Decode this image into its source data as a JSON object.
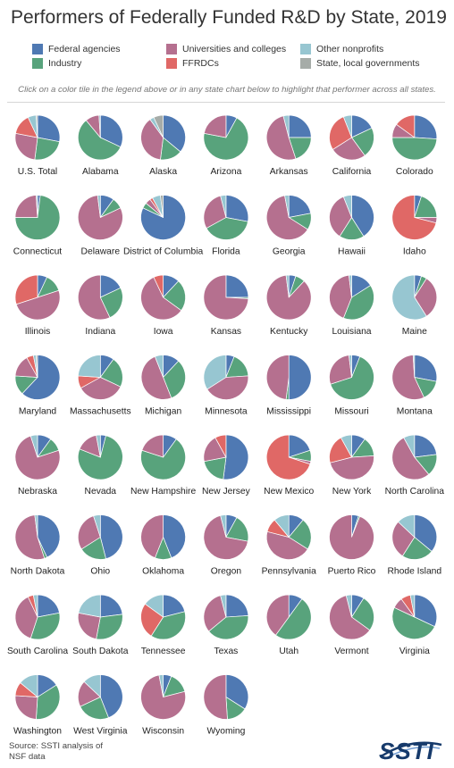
{
  "title": "Performers of Federally Funded R&D by State, 2019",
  "legend": [
    {
      "key": "federal",
      "label": "Federal agencies",
      "color": "#4f79b3"
    },
    {
      "key": "industry",
      "label": "Industry",
      "color": "#58a37c"
    },
    {
      "key": "universities",
      "label": "Universities and colleges",
      "color": "#b5708f"
    },
    {
      "key": "ffrdc",
      "label": "FFRDCs",
      "color": "#e06866"
    },
    {
      "key": "nonprofit",
      "label": "Other nonprofits",
      "color": "#97c6d1"
    },
    {
      "key": "state_local",
      "label": "State, local governments",
      "color": "#a6aca8"
    }
  ],
  "instructions": "Click on a color tile in the legend above or in any state chart below to highlight that performer across all states.",
  "source": "Source: SSTI analysis of NSF data",
  "logo": "SSTI",
  "icons": {
    "logo": "ssti-logo-icon"
  },
  "chart_data": {
    "type": "pie",
    "series_order": [
      "federal",
      "industry",
      "universities",
      "ffrdc",
      "nonprofit",
      "state_local"
    ],
    "charts": [
      {
        "name": "U.S. Total",
        "values": [
          28,
          24,
          26,
          15,
          6,
          1
        ]
      },
      {
        "name": "Alabama",
        "values": [
          32,
          57,
          10,
          0,
          1,
          0
        ]
      },
      {
        "name": "Alaska",
        "values": [
          36,
          16,
          38,
          0,
          3,
          7
        ]
      },
      {
        "name": "Arizona",
        "values": [
          8,
          70,
          22,
          0,
          0,
          0
        ]
      },
      {
        "name": "Arkansas",
        "values": [
          25,
          20,
          51,
          0,
          4,
          0
        ]
      },
      {
        "name": "California",
        "values": [
          18,
          22,
          26,
          28,
          6,
          0
        ]
      },
      {
        "name": "Colorado",
        "values": [
          26,
          49,
          10,
          15,
          0,
          0
        ]
      },
      {
        "name": "Connecticut",
        "values": [
          2,
          73,
          24,
          0,
          1,
          0
        ]
      },
      {
        "name": "Delaware",
        "values": [
          10,
          8,
          80,
          0,
          2,
          0
        ]
      },
      {
        "name": "District of Columbia",
        "values": [
          82,
          4,
          4,
          2,
          6,
          2
        ]
      },
      {
        "name": "Florida",
        "values": [
          28,
          39,
          29,
          0,
          4,
          0
        ]
      },
      {
        "name": "Georgia",
        "values": [
          22,
          12,
          63,
          0,
          3,
          0
        ]
      },
      {
        "name": "Hawaii",
        "values": [
          41,
          18,
          35,
          0,
          6,
          0
        ]
      },
      {
        "name": "Idaho",
        "values": [
          5,
          20,
          4,
          71,
          0,
          0
        ]
      },
      {
        "name": "Illinois",
        "values": [
          7,
          13,
          50,
          30,
          0,
          0
        ]
      },
      {
        "name": "Indiana",
        "values": [
          18,
          25,
          57,
          0,
          0,
          0
        ]
      },
      {
        "name": "Iowa",
        "values": [
          12,
          23,
          58,
          7,
          0,
          0
        ]
      },
      {
        "name": "Kansas",
        "values": [
          25,
          1,
          74,
          0,
          0,
          0
        ]
      },
      {
        "name": "Kentucky",
        "values": [
          5,
          7,
          86,
          0,
          2,
          0
        ]
      },
      {
        "name": "Louisiana",
        "values": [
          16,
          40,
          42,
          0,
          2,
          0
        ]
      },
      {
        "name": "Maine",
        "values": [
          5,
          4,
          32,
          0,
          59,
          0
        ]
      },
      {
        "name": "Maryland",
        "values": [
          62,
          14,
          16,
          5,
          2,
          1
        ]
      },
      {
        "name": "Massachusetts",
        "values": [
          10,
          22,
          35,
          9,
          24,
          0
        ]
      },
      {
        "name": "Michigan",
        "values": [
          12,
          32,
          50,
          0,
          6,
          0
        ]
      },
      {
        "name": "Minnesota",
        "values": [
          6,
          18,
          42,
          0,
          34,
          0
        ]
      },
      {
        "name": "Mississippi",
        "values": [
          50,
          2,
          48,
          0,
          0,
          0
        ]
      },
      {
        "name": "Missouri",
        "values": [
          6,
          64,
          28,
          0,
          2,
          0
        ]
      },
      {
        "name": "Montana",
        "values": [
          28,
          15,
          56,
          0,
          1,
          0
        ]
      },
      {
        "name": "Nebraska",
        "values": [
          10,
          10,
          75,
          0,
          5,
          0
        ]
      },
      {
        "name": "Nevada",
        "values": [
          4,
          77,
          16,
          0,
          3,
          0
        ]
      },
      {
        "name": "New Hampshire",
        "values": [
          10,
          70,
          20,
          0,
          0,
          0
        ]
      },
      {
        "name": "New Jersey",
        "values": [
          52,
          20,
          20,
          8,
          0,
          0
        ]
      },
      {
        "name": "New Mexico",
        "values": [
          20,
          8,
          2,
          70,
          0,
          0
        ]
      },
      {
        "name": "New York",
        "values": [
          10,
          14,
          47,
          21,
          8,
          0
        ]
      },
      {
        "name": "North Carolina",
        "values": [
          23,
          16,
          53,
          0,
          8,
          0
        ]
      },
      {
        "name": "North Dakota",
        "values": [
          43,
          2,
          53,
          0,
          2,
          0
        ]
      },
      {
        "name": "Ohio",
        "values": [
          46,
          20,
          29,
          0,
          5,
          0
        ]
      },
      {
        "name": "Oklahoma",
        "values": [
          44,
          12,
          44,
          0,
          0,
          0
        ]
      },
      {
        "name": "Oregon",
        "values": [
          8,
          20,
          68,
          0,
          4,
          0
        ]
      },
      {
        "name": "Pennsylvania",
        "values": [
          11,
          23,
          45,
          10,
          11,
          0
        ]
      },
      {
        "name": "Puerto Rico",
        "values": [
          5,
          1,
          94,
          0,
          0,
          0
        ]
      },
      {
        "name": "Rhode Island",
        "values": [
          36,
          23,
          28,
          0,
          13,
          0
        ]
      },
      {
        "name": "South Carolina",
        "values": [
          22,
          33,
          38,
          4,
          3,
          0
        ]
      },
      {
        "name": "South Dakota",
        "values": [
          23,
          30,
          25,
          0,
          22,
          0
        ]
      },
      {
        "name": "Tennessee",
        "values": [
          21,
          38,
          0,
          26,
          15,
          0
        ]
      },
      {
        "name": "Texas",
        "values": [
          24,
          40,
          32,
          0,
          4,
          0
        ]
      },
      {
        "name": "Utah",
        "values": [
          10,
          50,
          40,
          0,
          0,
          0
        ]
      },
      {
        "name": "Vermont",
        "values": [
          9,
          26,
          61,
          0,
          4,
          0
        ]
      },
      {
        "name": "Virginia",
        "values": [
          32,
          50,
          8,
          7,
          3,
          0
        ]
      },
      {
        "name": "Washington",
        "values": [
          16,
          35,
          25,
          10,
          14,
          0
        ]
      },
      {
        "name": "West Virginia",
        "values": [
          44,
          24,
          19,
          0,
          13,
          0
        ]
      },
      {
        "name": "Wisconsin",
        "values": [
          6,
          15,
          76,
          0,
          3,
          0
        ]
      },
      {
        "name": "Wyoming",
        "values": [
          34,
          15,
          51,
          0,
          0,
          0
        ]
      }
    ]
  }
}
